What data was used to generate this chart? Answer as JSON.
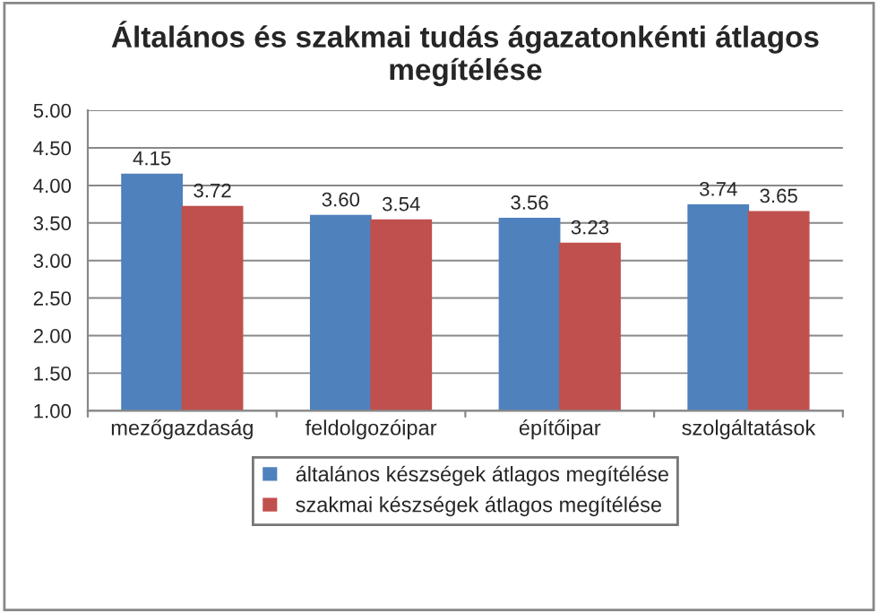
{
  "chart_data": {
    "type": "bar",
    "title": "Általános és szakmai tudás ágazatonkénti átlagos megítélése",
    "categories": [
      "mezőgazdaság",
      "feldolgozóipar",
      "építőipar",
      "szolgáltatások"
    ],
    "series": [
      {
        "name": "általános készségek átlagos megítélése",
        "color": "#4f81bd",
        "values": [
          4.15,
          3.6,
          3.56,
          3.74
        ],
        "value_labels": [
          "4.15",
          "3.60",
          "3.56",
          "3.74"
        ]
      },
      {
        "name": "szakmai készségek átlagos megítélése",
        "color": "#c0504d",
        "values": [
          3.72,
          3.54,
          3.23,
          3.65
        ],
        "value_labels": [
          "3.72",
          "3.54",
          "3.23",
          "3.65"
        ]
      }
    ],
    "ylim": [
      1,
      5
    ],
    "yticks": [
      {
        "value": 1,
        "label": "1.00"
      },
      {
        "value": 1.5,
        "label": "1.50"
      },
      {
        "value": 2,
        "label": "2.00"
      },
      {
        "value": 2.5,
        "label": "2.50"
      },
      {
        "value": 3,
        "label": "3.00"
      },
      {
        "value": 3.5,
        "label": "3.50"
      },
      {
        "value": 4,
        "label": "4.00"
      },
      {
        "value": 4.5,
        "label": "4.50"
      },
      {
        "value": 5,
        "label": "5.00"
      }
    ],
    "grid": "y",
    "legend": "bottom"
  }
}
